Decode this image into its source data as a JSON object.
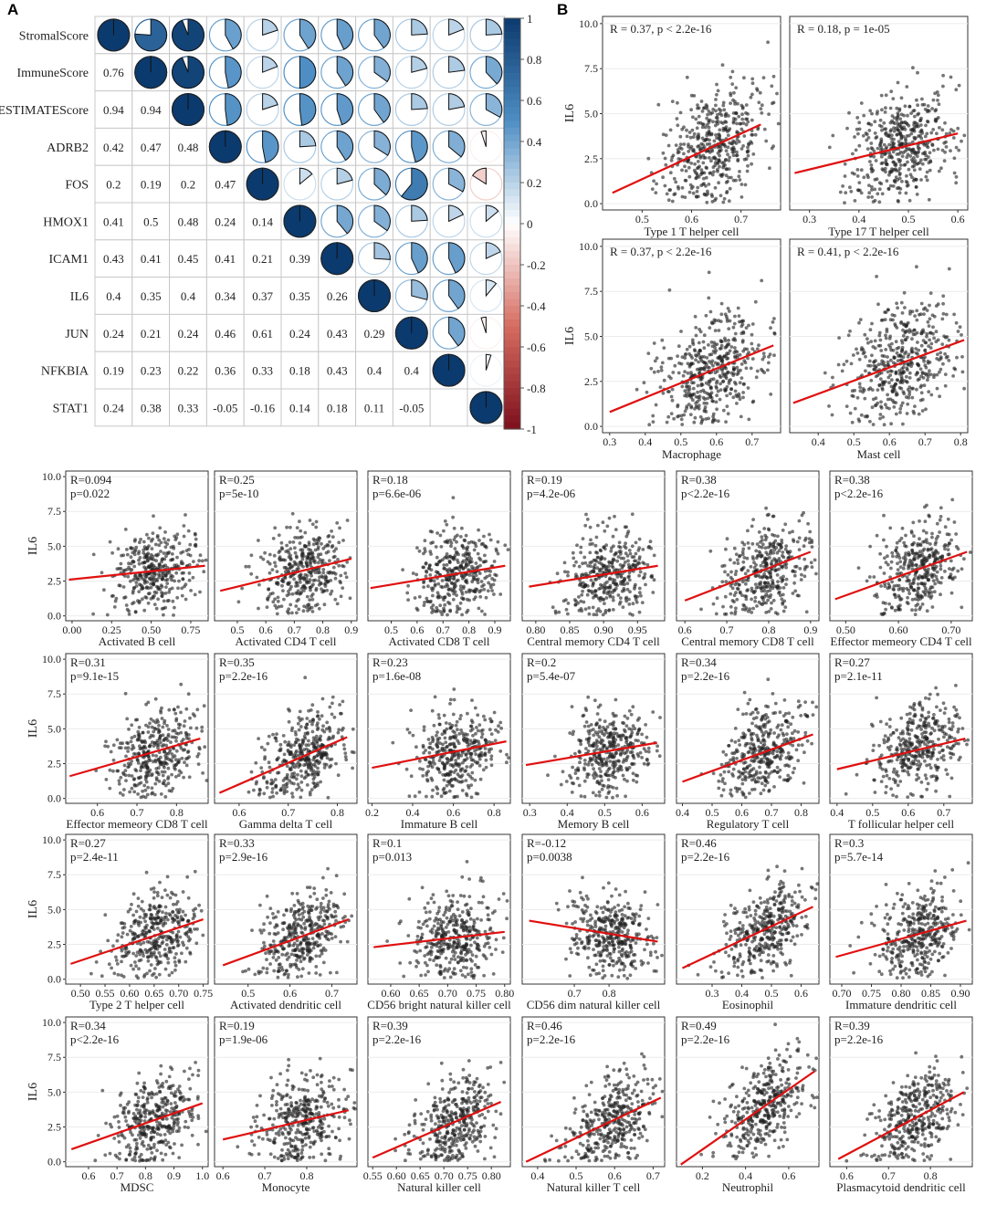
{
  "panels": {
    "a": "A",
    "b": "B"
  },
  "colors": {
    "positive": "#0b3a6e",
    "negative": "#7d0f1c",
    "neutral": "#ffffff",
    "regression": "#e01010",
    "points": "#222222"
  },
  "chart_data": [
    {
      "type": "heatmap",
      "title": "",
      "variables": [
        "StromalScore",
        "ImmuneScore",
        "ESTIMATEScore",
        "ADRB2",
        "FOS",
        "HMOX1",
        "ICAM1",
        "IL6",
        "JUN",
        "NFKBIA",
        "STAT1"
      ],
      "matrix": [
        [
          1,
          0.76,
          0.94,
          0.42,
          0.2,
          0.41,
          0.43,
          0.4,
          0.24,
          0.19,
          0.24
        ],
        [
          0.76,
          1,
          0.94,
          0.47,
          0.19,
          0.5,
          0.41,
          0.35,
          0.21,
          0.23,
          0.38
        ],
        [
          0.94,
          0.94,
          1,
          0.48,
          0.2,
          0.48,
          0.45,
          0.4,
          0.24,
          0.22,
          0.33
        ],
        [
          0.42,
          0.47,
          0.48,
          1,
          0.47,
          0.24,
          0.41,
          0.34,
          0.46,
          0.36,
          -0.05
        ],
        [
          0.2,
          0.19,
          0.2,
          0.47,
          1,
          0.14,
          0.21,
          0.37,
          0.61,
          0.33,
          -0.16
        ],
        [
          0.41,
          0.5,
          0.48,
          0.24,
          0.14,
          1,
          0.39,
          0.35,
          0.24,
          0.18,
          0.14
        ],
        [
          0.43,
          0.41,
          0.45,
          0.41,
          0.21,
          0.39,
          1,
          0.26,
          0.43,
          0.43,
          0.18
        ],
        [
          0.4,
          0.35,
          0.4,
          0.34,
          0.37,
          0.35,
          0.26,
          1,
          0.29,
          0.4,
          0.11
        ],
        [
          0.24,
          0.21,
          0.24,
          0.46,
          0.61,
          0.24,
          0.43,
          0.29,
          1,
          0.4,
          -0.05
        ],
        [
          0.19,
          0.23,
          0.22,
          0.36,
          0.33,
          0.18,
          0.43,
          0.4,
          0.4,
          1,
          0.05
        ],
        [
          0.24,
          0.38,
          0.33,
          -0.05,
          -0.16,
          0.14,
          0.18,
          0.11,
          -0.05,
          0.05,
          1
        ]
      ],
      "lower_labels": [
        [
          "0.76"
        ],
        [
          "0.94",
          "0.94"
        ],
        [
          "0.42",
          "0.47",
          "0.48"
        ],
        [
          "0.2",
          "0.19",
          "0.2",
          "0.47"
        ],
        [
          "0.41",
          "0.5",
          "0.48",
          "0.24",
          "0.14"
        ],
        [
          "0.43",
          "0.41",
          "0.45",
          "0.41",
          "0.21",
          "0.39"
        ],
        [
          "0.4",
          "0.35",
          "0.4",
          "0.34",
          "0.37",
          "0.35",
          "0.26"
        ],
        [
          "0.24",
          "0.21",
          "0.24",
          "0.46",
          "0.61",
          "0.24",
          "0.43",
          "0.29"
        ],
        [
          "0.19",
          "0.23",
          "0.22",
          "0.36",
          "0.33",
          "0.18",
          "0.43",
          "0.4",
          "0.4"
        ],
        [
          "0.24",
          "0.38",
          "0.33",
          "-0.05",
          "-0.16",
          "0.14",
          "0.18",
          "0.11",
          "-0.05",
          ""
        ]
      ],
      "colorbar_ticks": [
        "1",
        "0.8",
        "0.6",
        "0.4",
        "0.2",
        "0",
        "-0.2",
        "-0.4",
        "-0.6",
        "-0.8",
        "-1"
      ],
      "colorbar_range": [
        -1,
        1
      ]
    },
    {
      "type": "scatter",
      "group": "panel-b",
      "ylabel": "IL6",
      "yticks": [
        "10.0",
        "7.5",
        "5.0",
        "2.5",
        "0.0"
      ],
      "ylim": [
        0,
        10
      ],
      "plots": [
        {
          "xlabel": "Type 1 T helper cell",
          "annotation": "R = 0.37, p < 2.2e-16",
          "R": 0.37,
          "xlim": [
            0.42,
            0.78
          ],
          "xticks": [
            "0.5",
            "0.6",
            "0.7"
          ],
          "fit": [
            [
              0.44,
              0.6
            ],
            [
              0.74,
              4.4
            ]
          ],
          "seed": 11
        },
        {
          "xlabel": "Type 17 T helper cell",
          "annotation": "R = 0.18, p = 1e-05",
          "R": 0.18,
          "xlim": [
            0.26,
            0.62
          ],
          "xticks": [
            "0.3",
            "0.4",
            "0.5",
            "0.6"
          ],
          "fit": [
            [
              0.27,
              1.7
            ],
            [
              0.6,
              3.9
            ]
          ],
          "seed": 12
        },
        {
          "xlabel": "Macrophage",
          "annotation": "R = 0.37, p < 2.2e-16",
          "R": 0.37,
          "xlim": [
            0.28,
            0.78
          ],
          "xticks": [
            "0.3",
            "0.4",
            "0.5",
            "0.6",
            "0.7"
          ],
          "fit": [
            [
              0.3,
              0.8
            ],
            [
              0.76,
              4.5
            ]
          ],
          "seed": 13
        },
        {
          "xlabel": "Mast cell",
          "annotation": "R = 0.41, p < 2.2e-16",
          "R": 0.41,
          "xlim": [
            0.32,
            0.82
          ],
          "xticks": [
            "0.4",
            "0.5",
            "0.6",
            "0.7",
            "0.8"
          ],
          "fit": [
            [
              0.33,
              1.3
            ],
            [
              0.81,
              4.8
            ]
          ],
          "seed": 14
        }
      ]
    },
    {
      "type": "scatter",
      "group": "grid",
      "ylabel": "IL6",
      "yticks": [
        "10.0",
        "7.5",
        "5.0",
        "2.5",
        "0.0"
      ],
      "ylim": [
        0,
        10
      ],
      "plots": [
        {
          "xlabel": "Activated B cell",
          "r_text": "R=0.094",
          "p_text": "p=0.022",
          "R": 0.094,
          "xlim": [
            -0.04,
            0.86
          ],
          "xticks": [
            "0.00",
            "0.25",
            "0.50",
            "0.75"
          ],
          "fit": [
            [
              -0.02,
              2.6
            ],
            [
              0.84,
              3.6
            ]
          ],
          "seed": 21
        },
        {
          "xlabel": "Activated CD4 T cell",
          "r_text": "R=0.25",
          "p_text": "p=5e-10",
          "R": 0.25,
          "xlim": [
            0.42,
            0.92
          ],
          "xticks": [
            "0.5",
            "0.6",
            "0.7",
            "0.8",
            "0.9"
          ],
          "fit": [
            [
              0.44,
              1.8
            ],
            [
              0.9,
              4.1
            ]
          ],
          "seed": 22
        },
        {
          "xlabel": "Activated CD8 T cell",
          "r_text": "R=0.18",
          "p_text": "p=6.6e-06",
          "R": 0.18,
          "xlim": [
            0.41,
            0.96
          ],
          "xticks": [
            "0.5",
            "0.6",
            "0.7",
            "0.8",
            "0.9"
          ],
          "fit": [
            [
              0.42,
              2.0
            ],
            [
              0.94,
              3.6
            ]
          ],
          "seed": 23
        },
        {
          "xlabel": "Central memory CD4 T cell",
          "r_text": "R=0.19",
          "p_text": "p=4.2e-06",
          "R": 0.19,
          "xlim": [
            0.78,
            0.99
          ],
          "xticks": [
            "0.80",
            "0.85",
            "0.90",
            "0.95"
          ],
          "fit": [
            [
              0.79,
              2.1
            ],
            [
              0.98,
              3.6
            ]
          ],
          "seed": 24
        },
        {
          "xlabel": "Central memory CD8 T cell",
          "r_text": "R=0.38",
          "p_text": "p<2.2e-16",
          "R": 0.38,
          "xlim": [
            0.58,
            0.92
          ],
          "xticks": [
            "0.6",
            "0.7",
            "0.8",
            "0.9"
          ],
          "fit": [
            [
              0.6,
              1.1
            ],
            [
              0.9,
              4.6
            ]
          ],
          "seed": 25
        },
        {
          "xlabel": "Effector memeory CD4 T cell",
          "r_text": "R=0.38",
          "p_text": "p<2.2e-16",
          "R": 0.38,
          "xlim": [
            0.47,
            0.74
          ],
          "xticks": [
            "0.50",
            "0.60",
            "0.70"
          ],
          "fit": [
            [
              0.48,
              1.2
            ],
            [
              0.73,
              4.6
            ]
          ],
          "seed": 26
        },
        {
          "xlabel": "Effector memeory CD8 T cell",
          "r_text": "R=0.31",
          "p_text": "p=9.1e-15",
          "R": 0.31,
          "xlim": [
            0.52,
            0.88
          ],
          "xticks": [
            "0.6",
            "0.7",
            "0.8"
          ],
          "fit": [
            [
              0.53,
              1.6
            ],
            [
              0.86,
              4.3
            ]
          ],
          "seed": 27
        },
        {
          "xlabel": "Gamma delta T cell",
          "r_text": "R=0.35",
          "p_text": "p=2.2e-16",
          "R": 0.35,
          "xlim": [
            0.55,
            0.84
          ],
          "xticks": [
            "0.6",
            "0.7",
            "0.8"
          ],
          "fit": [
            [
              0.56,
              0.4
            ],
            [
              0.82,
              4.4
            ]
          ],
          "seed": 28
        },
        {
          "xlabel": "Immature  B cell",
          "r_text": "R=0.23",
          "p_text": "p=1.6e-08",
          "R": 0.23,
          "xlim": [
            0.18,
            0.88
          ],
          "xticks": [
            "0.2",
            "0.4",
            "0.6",
            "0.8"
          ],
          "fit": [
            [
              0.2,
              2.2
            ],
            [
              0.86,
              4.1
            ]
          ],
          "seed": 29
        },
        {
          "xlabel": "Memory B cell",
          "r_text": "R=0.2",
          "p_text": "p=5.4e-07",
          "R": 0.2,
          "xlim": [
            0.28,
            0.66
          ],
          "xticks": [
            "0.3",
            "0.4",
            "0.5",
            "0.6"
          ],
          "fit": [
            [
              0.29,
              2.4
            ],
            [
              0.64,
              4.0
            ]
          ],
          "seed": 30
        },
        {
          "xlabel": "Regulatory T cell",
          "r_text": "R=0.34",
          "p_text": "p=2.2e-16",
          "R": 0.34,
          "xlim": [
            0.38,
            0.86
          ],
          "xticks": [
            "0.4",
            "0.5",
            "0.6",
            "0.7",
            "0.8"
          ],
          "fit": [
            [
              0.4,
              1.2
            ],
            [
              0.84,
              4.6
            ]
          ],
          "seed": 31
        },
        {
          "xlabel": "T follicular helper cell",
          "r_text": "R=0.27",
          "p_text": "p=2.1e-11",
          "R": 0.27,
          "xlim": [
            0.38,
            0.78
          ],
          "xticks": [
            "0.4",
            "0.5",
            "0.6",
            "0.7"
          ],
          "fit": [
            [
              0.4,
              2.1
            ],
            [
              0.76,
              4.3
            ]
          ],
          "seed": 32
        },
        {
          "xlabel": "Type 2 T helper cell",
          "r_text": "R=0.27",
          "p_text": "p=2.4e-11",
          "R": 0.27,
          "xlim": [
            0.47,
            0.76
          ],
          "xticks": [
            "0.50",
            "0.55",
            "0.60",
            "0.65",
            "0.70",
            "0.75"
          ],
          "fit": [
            [
              0.48,
              1.1
            ],
            [
              0.75,
              4.3
            ]
          ],
          "seed": 33
        },
        {
          "xlabel": "Activated dendritic cell",
          "r_text": "R=0.33",
          "p_text": "p=2.9e-16",
          "R": 0.33,
          "xlim": [
            0.42,
            0.76
          ],
          "xticks": [
            "0.5",
            "0.6",
            "0.7"
          ],
          "fit": [
            [
              0.44,
              1.0
            ],
            [
              0.74,
              4.3
            ]
          ],
          "seed": 34
        },
        {
          "xlabel": "CD56 bright natural killer cell",
          "r_text": "R=0.1",
          "p_text": "p=0.013",
          "R": 0.1,
          "xlim": [
            0.56,
            0.81
          ],
          "xticks": [
            "0.60",
            "0.65",
            "0.70",
            "0.75",
            "0.80"
          ],
          "fit": [
            [
              0.57,
              2.3
            ],
            [
              0.8,
              3.4
            ]
          ],
          "seed": 35
        },
        {
          "xlabel": "CD56 dim natural killer cell",
          "r_text": "R=-0.12",
          "p_text": "p=0.0038",
          "R": -0.12,
          "xlim": [
            0.55,
            0.96
          ],
          "xticks": [
            "0.7",
            "0.8"
          ],
          "fit": [
            [
              0.57,
              4.2
            ],
            [
              0.94,
              2.7
            ]
          ],
          "seed": 36
        },
        {
          "xlabel": "Eosinophil",
          "r_text": "R=0.46",
          "p_text": "p=2.2e-16",
          "R": 0.46,
          "xlim": [
            0.18,
            0.66
          ],
          "xticks": [
            "0.3",
            "0.4",
            "0.5",
            "0.6"
          ],
          "fit": [
            [
              0.2,
              0.8
            ],
            [
              0.64,
              5.2
            ]
          ],
          "seed": 37
        },
        {
          "xlabel": "Immature dendritic cell",
          "r_text": "R=0.3",
          "p_text": "p=5.7e-14",
          "R": 0.3,
          "xlim": [
            0.68,
            0.92
          ],
          "xticks": [
            "0.70",
            "0.75",
            "0.80",
            "0.85",
            "0.90"
          ],
          "fit": [
            [
              0.69,
              1.6
            ],
            [
              0.91,
              4.2
            ]
          ],
          "seed": 38
        },
        {
          "xlabel": "MDSC",
          "r_text": "R=0.34",
          "p_text": "p<2.2e-16",
          "R": 0.34,
          "xlim": [
            0.52,
            1.02
          ],
          "xticks": [
            "0.6",
            "0.7",
            "0.8",
            "0.9",
            "1.0"
          ],
          "fit": [
            [
              0.54,
              0.9
            ],
            [
              1.0,
              4.2
            ]
          ],
          "seed": 39
        },
        {
          "xlabel": "Monocyte",
          "r_text": "R=0.19",
          "p_text": "p=1.9e-06",
          "R": 0.19,
          "xlim": [
            0.58,
            0.92
          ],
          "xticks": [
            "0.6",
            "0.7",
            "0.8"
          ],
          "fit": [
            [
              0.6,
              1.6
            ],
            [
              0.9,
              3.7
            ]
          ],
          "seed": 40
        },
        {
          "xlabel": "Natural killer cell",
          "r_text": "R=0.39",
          "p_text": "p=2.2e-16",
          "R": 0.39,
          "xlim": [
            0.54,
            0.84
          ],
          "xticks": [
            "0.55",
            "0.60",
            "0.65",
            "0.70",
            "0.75",
            "0.80"
          ],
          "fit": [
            [
              0.55,
              0.3
            ],
            [
              0.82,
              4.3
            ]
          ],
          "seed": 41
        },
        {
          "xlabel": "Natural killer T cell",
          "r_text": "R=0.46",
          "p_text": "p=2.2e-16",
          "R": 0.46,
          "xlim": [
            0.36,
            0.73
          ],
          "xticks": [
            "0.4",
            "0.5",
            "0.6",
            "0.7"
          ],
          "fit": [
            [
              0.37,
              0.0
            ],
            [
              0.72,
              4.6
            ]
          ],
          "seed": 42
        },
        {
          "xlabel": "Neutrophil",
          "r_text": "R=0.49",
          "p_text": "p=2.2e-16",
          "R": 0.49,
          "xlim": [
            0.08,
            0.74
          ],
          "xticks": [
            "0.2",
            "0.4",
            "0.6"
          ],
          "fit": [
            [
              0.1,
              -0.2
            ],
            [
              0.72,
              6.5
            ]
          ],
          "seed": 43
        },
        {
          "xlabel": "Plasmacytoid dendritic cell",
          "r_text": "R=0.39",
          "p_text": "p=2.2e-16",
          "R": 0.39,
          "xlim": [
            0.56,
            0.9
          ],
          "xticks": [
            "0.6",
            "0.7",
            "0.8"
          ],
          "fit": [
            [
              0.58,
              0.2
            ],
            [
              0.88,
              5.0
            ]
          ],
          "seed": 44
        }
      ]
    }
  ]
}
